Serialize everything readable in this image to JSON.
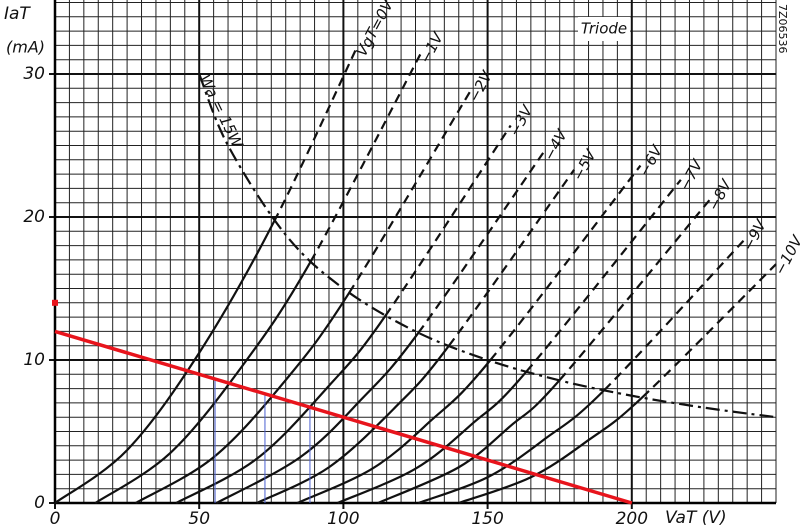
{
  "chart_data": {
    "type": "line",
    "title": "Triode",
    "side_text": "7Z06536",
    "y_label": "IaT",
    "y_unit": "(mA)",
    "x_label": "VaT (V)",
    "xlim": [
      0,
      250
    ],
    "ylim": [
      0,
      35
    ],
    "xticks": [
      0,
      50,
      100,
      150,
      200
    ],
    "yticks": [
      0,
      10,
      20,
      30
    ],
    "grid": true,
    "x_minor_step": 5,
    "y_minor_step": 1,
    "color": "#111111",
    "series": [
      {
        "name": "VgT=0V",
        "x": [
          0,
          25,
          50,
          76,
          105
        ],
        "values": [
          0,
          3.7,
          10.5,
          19.7,
          32
        ],
        "dashed_from": 3
      },
      {
        "name": "−1V",
        "x": [
          14,
          40,
          65,
          88.7,
          127
        ],
        "values": [
          0,
          3.5,
          9.6,
          16.9,
          31.5
        ],
        "dashed_from": 3
      },
      {
        "name": "−2V",
        "x": [
          28,
          55,
          80,
          102,
          144
        ],
        "values": [
          0,
          3.2,
          8.6,
          14.7,
          28.8
        ],
        "dashed_from": 3
      },
      {
        "name": "−3V",
        "x": [
          42,
          70,
          95,
          114.6,
          158
        ],
        "values": [
          0,
          3.1,
          8.2,
          13.1,
          26.4
        ],
        "dashed_from": 3
      },
      {
        "name": "−4V",
        "x": [
          56,
          85,
          106,
          126,
          170
        ],
        "values": [
          0,
          3.2,
          7.2,
          11.9,
          24.7
        ],
        "dashed_from": 3
      },
      {
        "name": "−5V",
        "x": [
          70,
          95,
          118,
          136.6,
          180
        ],
        "values": [
          0,
          2.5,
          6.7,
          11.0,
          23.3
        ],
        "dashed_from": 3
      },
      {
        "name": "−6V",
        "x": [
          84,
          110,
          130,
          151,
          203
        ],
        "values": [
          0,
          2.4,
          5.7,
          10.0,
          23.6
        ],
        "dashed_from": 3
      },
      {
        "name": "−7V",
        "x": [
          98,
          125,
          145,
          163.5,
          217
        ],
        "values": [
          0,
          2.4,
          5.6,
          9.2,
          22.6
        ],
        "dashed_from": 3
      },
      {
        "name": "−8V",
        "x": [
          112,
          140,
          158,
          175,
          227
        ],
        "values": [
          0,
          2.5,
          5.4,
          8.6,
          21.2
        ],
        "dashed_from": 3
      },
      {
        "name": "−9V",
        "x": [
          126,
          150,
          170,
          190.5,
          239
        ],
        "values": [
          0,
          1.8,
          4.5,
          7.9,
          18.4
        ],
        "dashed_from": 3
      },
      {
        "name": "−10V",
        "x": [
          140,
          165,
          185,
          203.7,
          250
        ],
        "values": [
          0,
          1.8,
          4.4,
          7.4,
          16.7
        ],
        "dashed_from": 3
      }
    ],
    "power_curve": {
      "name": "Wa = 15W",
      "x": [
        50,
        60,
        80,
        100,
        125,
        150,
        175,
        200,
        225,
        250
      ],
      "values": [
        30,
        25,
        18.75,
        15,
        12,
        10,
        8.57,
        7.5,
        6.67,
        6
      ]
    },
    "load_line": {
      "color": "#e8141c",
      "x": [
        0,
        200
      ],
      "values": [
        12,
        0
      ]
    },
    "marker": {
      "color": "#e8141c",
      "x": [
        0
      ],
      "values": [
        14
      ]
    },
    "guides": {
      "color": "#4a5fd0",
      "x": [
        55.5,
        72.8,
        88.4
      ],
      "values": [
        8.7,
        7.6,
        6.7
      ]
    }
  }
}
